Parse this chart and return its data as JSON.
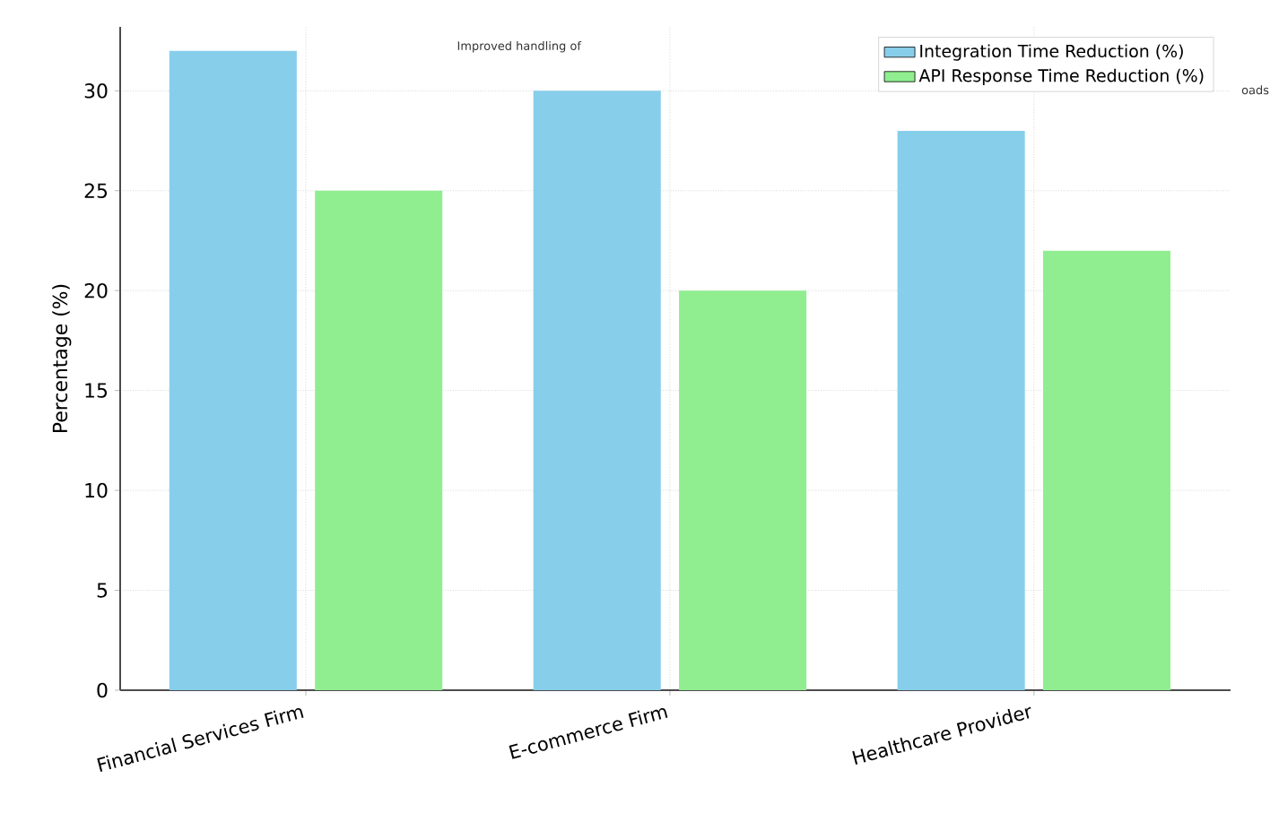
{
  "chart_data": {
    "type": "bar",
    "ylabel": "Percentage (%)",
    "categories": [
      "Financial Services Firm",
      "E-commerce Firm",
      "Healthcare Provider"
    ],
    "series": [
      {
        "name": "Integration Time Reduction (%)",
        "color": "#87ceeb",
        "values": [
          32,
          30,
          28
        ]
      },
      {
        "name": "API Response Time Reduction (%)",
        "color": "#90ee90",
        "values": [
          25,
          20,
          22
        ]
      }
    ],
    "ylim": [
      0,
      33.2
    ],
    "yticks": [
      0,
      5,
      10,
      15,
      20,
      25,
      30
    ],
    "grid": true,
    "legend": "top right",
    "annotations": [
      "Improved handling of",
      "oads"
    ]
  }
}
